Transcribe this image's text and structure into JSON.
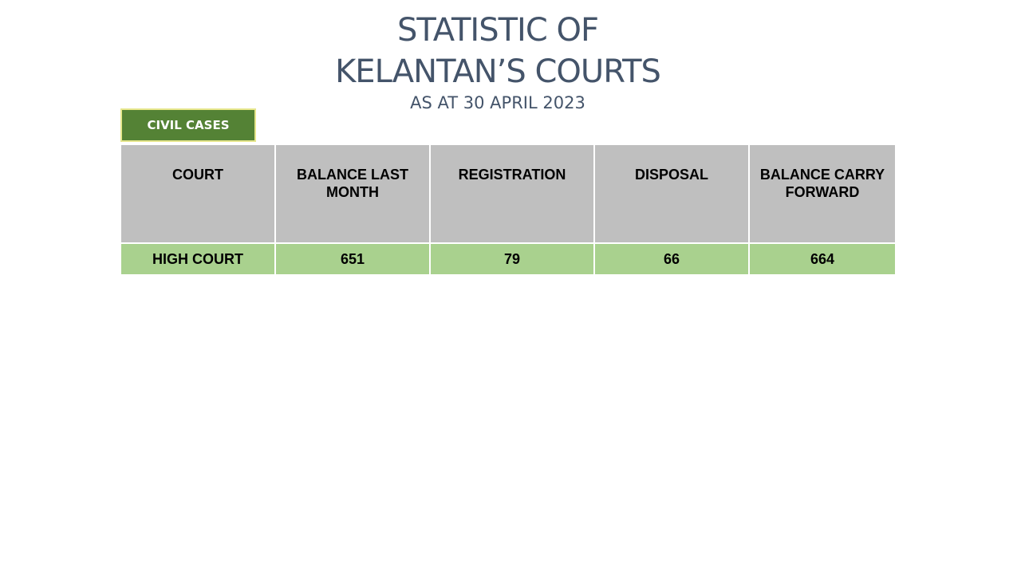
{
  "title": {
    "line1": "STATISTIC OF",
    "line2": "KELANTAN’S COURTS",
    "subtitle": "AS AT 30 APRIL 2023"
  },
  "badge": {
    "label": "CIVIL CASES"
  },
  "table": {
    "headers": [
      "COURT",
      "BALANCE LAST MONTH",
      "REGISTRATION",
      "DISPOSAL",
      "BALANCE CARRY FORWARD"
    ],
    "rows": [
      [
        "HIGH COURT",
        "651",
        "79",
        "66",
        "664"
      ]
    ]
  },
  "colors": {
    "title": "#44546A",
    "badge_bg": "#548235",
    "badge_border": "#E6E68C",
    "header_bg": "#BFBFBF",
    "row_bg": "#A9D18E"
  }
}
